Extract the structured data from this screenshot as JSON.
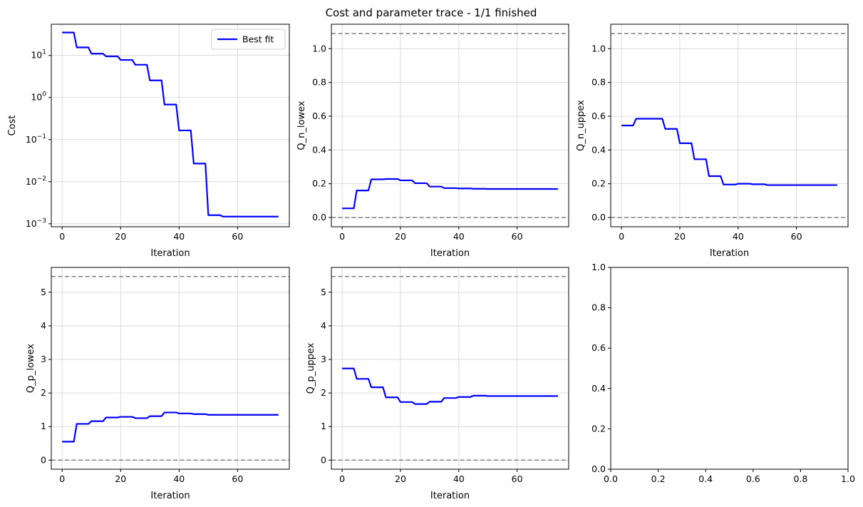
{
  "figure": {
    "title": "Cost and parameter trace - 1/1 finished"
  },
  "chart_data": [
    {
      "type": "line",
      "ylabel": "Cost",
      "xlabel": "Iteration",
      "yscale": "log",
      "xlim": [
        -3.7,
        77.7
      ],
      "ylim": [
        0.00085,
        55
      ],
      "xticks": [
        0,
        20,
        40,
        60
      ],
      "yticks": [
        {
          "v": 0.001,
          "base": "10",
          "exp": "−3"
        },
        {
          "v": 0.01,
          "base": "10",
          "exp": "−2"
        },
        {
          "v": 0.1,
          "base": "10",
          "exp": "−1"
        },
        {
          "v": 1,
          "base": "10",
          "exp": "0"
        },
        {
          "v": 10,
          "base": "10",
          "exp": "1"
        }
      ],
      "grid": true,
      "legend": {
        "position": "upper right",
        "entries": [
          "Best fit"
        ]
      },
      "series": [
        {
          "name": "Best fit",
          "color": "#0000ff",
          "x": [
            0,
            4,
            5,
            9,
            10,
            14,
            15,
            19,
            20,
            24,
            25,
            29,
            30,
            34,
            35,
            39,
            40,
            44,
            45,
            49,
            50,
            54,
            55,
            74
          ],
          "y": [
            35,
            35,
            15.5,
            15.5,
            11,
            11,
            9.5,
            9.5,
            7.8,
            7.8,
            6,
            6,
            2.55,
            2.55,
            0.68,
            0.68,
            0.165,
            0.165,
            0.027,
            0.027,
            0.0016,
            0.0016,
            0.00148,
            0.00148
          ]
        }
      ]
    },
    {
      "type": "line",
      "ylabel": "Q_n_lowex",
      "xlabel": "Iteration",
      "xlim": [
        -3.7,
        77.7
      ],
      "ylim": [
        -0.055,
        1.145
      ],
      "xticks": [
        0,
        20,
        40,
        60
      ],
      "yticks": [
        0.0,
        0.2,
        0.4,
        0.6,
        0.8,
        1.0
      ],
      "ytick_labels": [
        "0.0",
        "0.2",
        "0.4",
        "0.6",
        "0.8",
        "1.0"
      ],
      "grid": true,
      "bounds": [
        0,
        1.09
      ],
      "series": [
        {
          "color": "#0000ff",
          "x": [
            0,
            4,
            5,
            9,
            10,
            14,
            15,
            19,
            20,
            24,
            25,
            29,
            30,
            34,
            35,
            39,
            40,
            44,
            45,
            49,
            50,
            74
          ],
          "y": [
            0.054,
            0.054,
            0.16,
            0.16,
            0.226,
            0.226,
            0.228,
            0.228,
            0.22,
            0.22,
            0.203,
            0.203,
            0.183,
            0.183,
            0.174,
            0.174,
            0.172,
            0.172,
            0.17,
            0.17,
            0.169,
            0.169
          ]
        }
      ]
    },
    {
      "type": "line",
      "ylabel": "Q_n_uppex",
      "xlabel": "Iteration",
      "xlim": [
        -3.7,
        77.7
      ],
      "ylim": [
        -0.055,
        1.145
      ],
      "xticks": [
        0,
        20,
        40,
        60
      ],
      "yticks": [
        0.0,
        0.2,
        0.4,
        0.6,
        0.8,
        1.0
      ],
      "ytick_labels": [
        "0.0",
        "0.2",
        "0.4",
        "0.6",
        "0.8",
        "1.0"
      ],
      "grid": true,
      "bounds": [
        0,
        1.09
      ],
      "series": [
        {
          "color": "#0000ff",
          "x": [
            0,
            4,
            5,
            9,
            10,
            14,
            15,
            19,
            20,
            24,
            25,
            29,
            30,
            34,
            35,
            39,
            40,
            44,
            45,
            49,
            50,
            74
          ],
          "y": [
            0.545,
            0.545,
            0.585,
            0.585,
            0.585,
            0.585,
            0.525,
            0.525,
            0.44,
            0.44,
            0.345,
            0.345,
            0.245,
            0.245,
            0.195,
            0.195,
            0.2,
            0.2,
            0.197,
            0.197,
            0.192,
            0.192
          ]
        }
      ]
    },
    {
      "type": "line",
      "ylabel": "Q_p_lowex",
      "xlabel": "Iteration",
      "xlim": [
        -3.7,
        77.7
      ],
      "ylim": [
        -0.27,
        5.74
      ],
      "xticks": [
        0,
        20,
        40,
        60
      ],
      "yticks": [
        0,
        1,
        2,
        3,
        4,
        5
      ],
      "ytick_labels": [
        "0",
        "1",
        "2",
        "3",
        "4",
        "5"
      ],
      "grid": true,
      "bounds": [
        0,
        5.47
      ],
      "series": [
        {
          "color": "#0000ff",
          "x": [
            0,
            4,
            5,
            9,
            10,
            14,
            15,
            19,
            20,
            24,
            25,
            29,
            30,
            34,
            35,
            39,
            40,
            44,
            45,
            49,
            50,
            74
          ],
          "y": [
            0.55,
            0.55,
            1.08,
            1.08,
            1.16,
            1.16,
            1.27,
            1.27,
            1.29,
            1.29,
            1.25,
            1.25,
            1.31,
            1.31,
            1.42,
            1.42,
            1.39,
            1.39,
            1.37,
            1.37,
            1.35,
            1.35
          ]
        }
      ]
    },
    {
      "type": "line",
      "ylabel": "Q_p_uppex",
      "xlabel": "Iteration",
      "xlim": [
        -3.7,
        77.7
      ],
      "ylim": [
        -0.27,
        5.74
      ],
      "xticks": [
        0,
        20,
        40,
        60
      ],
      "yticks": [
        0,
        1,
        2,
        3,
        4,
        5
      ],
      "ytick_labels": [
        "0",
        "1",
        "2",
        "3",
        "4",
        "5"
      ],
      "grid": true,
      "bounds": [
        0,
        5.47
      ],
      "series": [
        {
          "color": "#0000ff",
          "x": [
            0,
            4,
            5,
            9,
            10,
            14,
            15,
            19,
            20,
            24,
            25,
            29,
            30,
            34,
            35,
            39,
            40,
            44,
            45,
            49,
            50,
            74
          ],
          "y": [
            2.73,
            2.73,
            2.42,
            2.42,
            2.17,
            2.17,
            1.87,
            1.87,
            1.73,
            1.73,
            1.67,
            1.67,
            1.74,
            1.74,
            1.85,
            1.85,
            1.88,
            1.88,
            1.92,
            1.92,
            1.91,
            1.91
          ]
        }
      ]
    },
    {
      "type": "line",
      "empty": true,
      "xlim": [
        0,
        1
      ],
      "ylim": [
        0,
        1
      ],
      "xticks": [
        0,
        0.2,
        0.4,
        0.6,
        0.8,
        1.0
      ],
      "xtick_labels": [
        "0.0",
        "0.2",
        "0.4",
        "0.6",
        "0.8",
        "1.0"
      ],
      "yticks": [
        0,
        0.2,
        0.4,
        0.6,
        0.8,
        1.0
      ],
      "ytick_labels": [
        "0.0",
        "0.2",
        "0.4",
        "0.6",
        "0.8",
        "1.0"
      ],
      "grid": false,
      "series": []
    }
  ],
  "colors": {
    "line": "#0000ff",
    "bounds": "#808080",
    "grid": "#d3d3d3",
    "axes": "#000000"
  }
}
